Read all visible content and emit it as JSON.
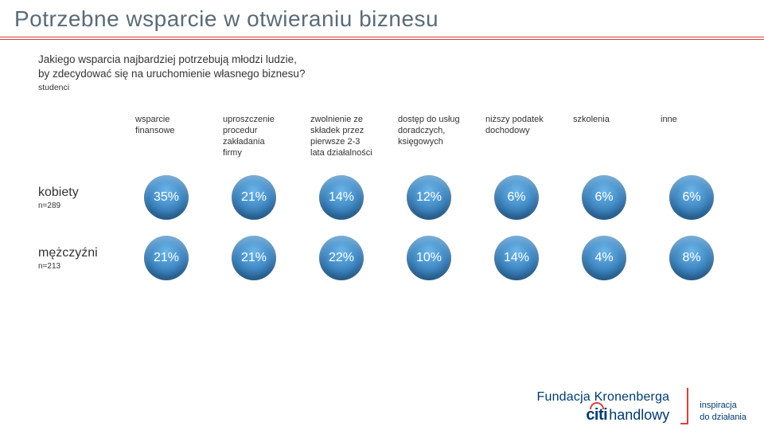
{
  "title": "Potrzebne wsparcie w otwieraniu biznesu",
  "subtitle_line1": "Jakiego wsparcia najbardziej potrzebują młodzi ludzie,",
  "subtitle_line2": "by zdecydować się na uruchomienie własnego biznesu?",
  "note": "studenci",
  "columns": [
    "wsparcie finansowe",
    "uproszczenie procedur zakładania firmy",
    "zwolnienie ze składek przez pierwsze 2-3 lata działalności",
    "dostęp do usług doradczych, księgowych",
    "niższy podatek dochodowy",
    "szkolenia",
    "inne"
  ],
  "rows": [
    {
      "label": "kobiety",
      "n": "n=289",
      "values": [
        "35%",
        "21%",
        "14%",
        "12%",
        "6%",
        "6%",
        "6%"
      ]
    },
    {
      "label": "mężczyźni",
      "n": "n=213",
      "values": [
        "21%",
        "21%",
        "22%",
        "10%",
        "14%",
        "4%",
        "8%"
      ]
    }
  ],
  "footer": {
    "brand_top": "Fundacja Kronenberga",
    "brand_citi": "citi",
    "brand_handlowy": "handlowy",
    "tagline_1": "inspiracja",
    "tagline_2": "do działania"
  },
  "style": {
    "bubble_gradient_inner": "#6bb5e8",
    "bubble_gradient_mid": "#3c84c0",
    "bubble_gradient_outer": "#1f5c94",
    "accent": "#d8413b",
    "title_color": "#5a6b78",
    "brand_color": "#003b70",
    "text_color": "#333333",
    "bg": "#ffffff"
  }
}
